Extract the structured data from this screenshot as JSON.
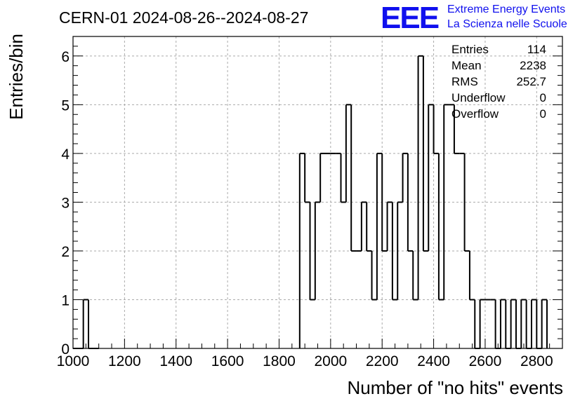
{
  "chart_data": {
    "type": "histogram",
    "title": "CERN-01 2024-08-26--2024-08-27",
    "xlabel": "Number of \"no hits\" events",
    "ylabel": "Entries/bin",
    "xlim": [
      1000,
      2900
    ],
    "ylim": [
      0,
      6.4
    ],
    "bin_width": 20,
    "x_ticks": [
      1000,
      1200,
      1400,
      1600,
      1800,
      2000,
      2200,
      2400,
      2600,
      2800
    ],
    "y_ticks": [
      0,
      1,
      2,
      3,
      4,
      5,
      6
    ],
    "grid": true,
    "bins": [
      {
        "x": 1000,
        "y": 0
      },
      {
        "x": 1020,
        "y": 0
      },
      {
        "x": 1040,
        "y": 1
      },
      {
        "x": 1060,
        "y": 0
      },
      {
        "x": 1080,
        "y": 0
      },
      {
        "x": 1880,
        "y": 4
      },
      {
        "x": 1900,
        "y": 3
      },
      {
        "x": 1920,
        "y": 1
      },
      {
        "x": 1940,
        "y": 3
      },
      {
        "x": 1960,
        "y": 4
      },
      {
        "x": 1980,
        "y": 4
      },
      {
        "x": 2000,
        "y": 4
      },
      {
        "x": 2020,
        "y": 4
      },
      {
        "x": 2040,
        "y": 3
      },
      {
        "x": 2060,
        "y": 5
      },
      {
        "x": 2080,
        "y": 2
      },
      {
        "x": 2100,
        "y": 2
      },
      {
        "x": 2120,
        "y": 3
      },
      {
        "x": 2140,
        "y": 2
      },
      {
        "x": 2160,
        "y": 1
      },
      {
        "x": 2180,
        "y": 4
      },
      {
        "x": 2200,
        "y": 2
      },
      {
        "x": 2220,
        "y": 3
      },
      {
        "x": 2240,
        "y": 1
      },
      {
        "x": 2260,
        "y": 3
      },
      {
        "x": 2280,
        "y": 4
      },
      {
        "x": 2300,
        "y": 2
      },
      {
        "x": 2320,
        "y": 1
      },
      {
        "x": 2340,
        "y": 6
      },
      {
        "x": 2360,
        "y": 2
      },
      {
        "x": 2380,
        "y": 5
      },
      {
        "x": 2400,
        "y": 4
      },
      {
        "x": 2420,
        "y": 1
      },
      {
        "x": 2440,
        "y": 5
      },
      {
        "x": 2460,
        "y": 5
      },
      {
        "x": 2480,
        "y": 4
      },
      {
        "x": 2500,
        "y": 4
      },
      {
        "x": 2520,
        "y": 2
      },
      {
        "x": 2540,
        "y": 1
      },
      {
        "x": 2560,
        "y": 0
      },
      {
        "x": 2580,
        "y": 1
      },
      {
        "x": 2600,
        "y": 1
      },
      {
        "x": 2620,
        "y": 1
      },
      {
        "x": 2640,
        "y": 0
      },
      {
        "x": 2660,
        "y": 1
      },
      {
        "x": 2680,
        "y": 0
      },
      {
        "x": 2700,
        "y": 1
      },
      {
        "x": 2720,
        "y": 0
      },
      {
        "x": 2740,
        "y": 1
      },
      {
        "x": 2760,
        "y": 0
      },
      {
        "x": 2780,
        "y": 1
      },
      {
        "x": 2800,
        "y": 0
      },
      {
        "x": 2820,
        "y": 1
      }
    ]
  },
  "stats": [
    {
      "label": "Entries",
      "value": "114"
    },
    {
      "label": "Mean",
      "value": "2238"
    },
    {
      "label": "RMS",
      "value": "252.7"
    },
    {
      "label": "Underflow",
      "value": "0"
    },
    {
      "label": "Overflow",
      "value": "0"
    }
  ],
  "logo": {
    "mark": "EEE",
    "line1": "Extreme Energy Events",
    "line2": "La Scienza nelle Scuole",
    "color": "#1010ee"
  }
}
